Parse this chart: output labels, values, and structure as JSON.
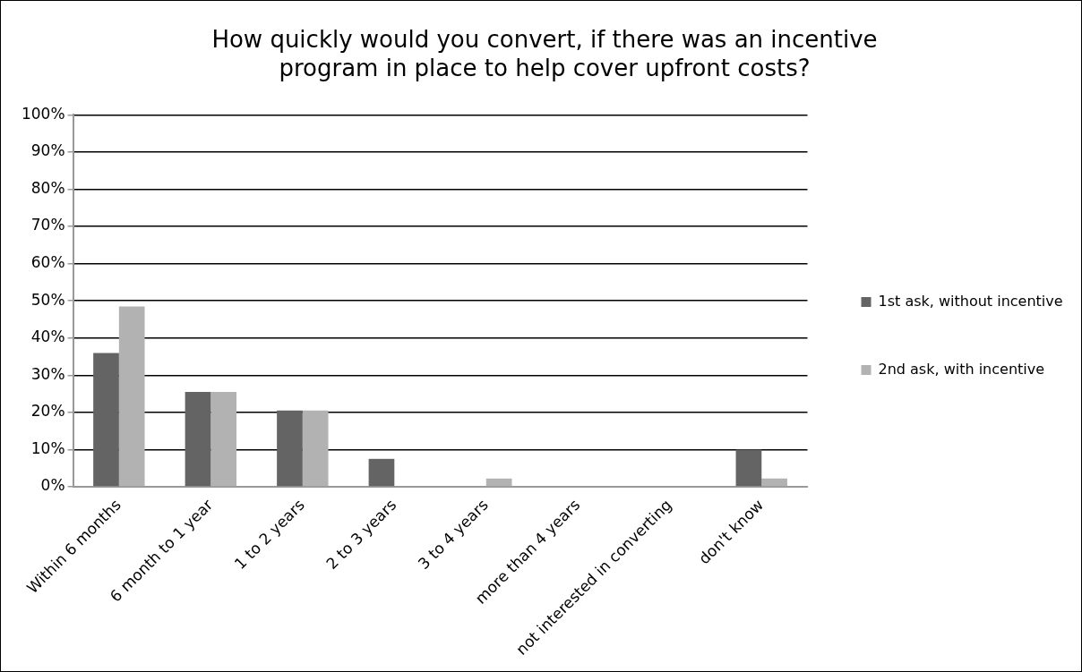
{
  "chart_data": {
    "type": "bar",
    "title": "How quickly would you convert, if there was an incentive program in place to help cover upfront costs?",
    "categories": [
      "Within 6 months",
      "6 month to 1 year",
      "1 to 2 years",
      "2 to 3 years",
      "3 to 4 years",
      "more than 4 years",
      "not interested in converting",
      "don't know"
    ],
    "series": [
      {
        "name": "1st ask, without incentive",
        "color": "#646464",
        "values": [
          36,
          25.5,
          20.5,
          7.5,
          0,
          0,
          0,
          10
        ]
      },
      {
        "name": "2nd ask, with incentive",
        "color": "#b2b2b2",
        "values": [
          48.5,
          25.5,
          20.5,
          0,
          2.2,
          0,
          0,
          2.2
        ]
      }
    ],
    "ylim": [
      0,
      100
    ],
    "yticks": [
      {
        "value": 0,
        "label": "0%"
      },
      {
        "value": 10,
        "label": "10%"
      },
      {
        "value": 20,
        "label": "20%"
      },
      {
        "value": 30,
        "label": "30%"
      },
      {
        "value": 40,
        "label": "40%"
      },
      {
        "value": 50,
        "label": "50%"
      },
      {
        "value": 60,
        "label": "60%"
      },
      {
        "value": 70,
        "label": "70%"
      },
      {
        "value": 80,
        "label": "80%"
      },
      {
        "value": 90,
        "label": "90%"
      },
      {
        "value": 100,
        "label": "100%"
      }
    ],
    "grid": "y",
    "legend": "right"
  }
}
